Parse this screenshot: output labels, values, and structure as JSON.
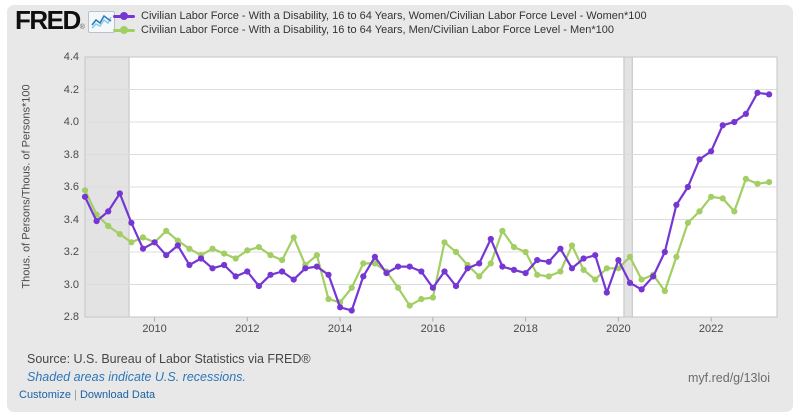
{
  "header": {
    "logo_text": "FRED",
    "logo_mark": "®",
    "logo_icon": "sparkline-chart-icon"
  },
  "footer": {
    "source": "Source: U.S. Bureau of Labor Statistics via FRED®",
    "recession_note": "Shaded areas indicate U.S. recessions.",
    "customize_label": "Customize",
    "separator": "|",
    "download_label": "Download Data",
    "short_url": "myf.red/g/13loi"
  },
  "chart_data": {
    "type": "line",
    "title": "",
    "xlabel": "",
    "ylabel": "Thous. of Persons/Thous. of Persons*100",
    "xlim": [
      2008.5,
      2023.42
    ],
    "ylim": [
      2.8,
      4.4
    ],
    "grid": true,
    "legend_position": "top",
    "x_tick_labels": [
      "2010",
      "2012",
      "2014",
      "2016",
      "2018",
      "2020",
      "2022"
    ],
    "y_tick_labels": [
      "4.4",
      "4.2",
      "4.0",
      "3.8",
      "3.6",
      "3.4",
      "3.2",
      "3.0",
      "2.8"
    ],
    "recessions": [
      {
        "start": 2008.5,
        "end": 2009.45
      },
      {
        "start": 2020.12,
        "end": 2020.3
      }
    ],
    "recession_fill": "#e3e3e3",
    "recession_edge": "#c2c2c2",
    "plot_bg": "#ffffff",
    "grid_color": "#dcdcdc",
    "border_color": "#c6c6c6",
    "x": [
      2008.5,
      2008.75,
      2009,
      2009.25,
      2009.5,
      2009.75,
      2010,
      2010.25,
      2010.5,
      2010.75,
      2011,
      2011.25,
      2011.5,
      2011.75,
      2012,
      2012.25,
      2012.5,
      2012.75,
      2013,
      2013.25,
      2013.5,
      2013.75,
      2014,
      2014.25,
      2014.5,
      2014.75,
      2015,
      2015.25,
      2015.5,
      2015.75,
      2016,
      2016.25,
      2016.5,
      2016.75,
      2017,
      2017.25,
      2017.5,
      2017.75,
      2018,
      2018.25,
      2018.5,
      2018.75,
      2019,
      2019.25,
      2019.5,
      2019.75,
      2020,
      2020.25,
      2020.5,
      2020.75,
      2021,
      2021.25,
      2021.5,
      2021.75,
      2022,
      2022.25,
      2022.5,
      2022.75,
      2023,
      2023.25
    ],
    "series": [
      {
        "name": "Civilian Labor Force - With a Disability, 16 to 64 Years, Women/Civilian Labor Force Level - Women*100",
        "color": "#7536d3",
        "values": [
          3.54,
          3.39,
          3.45,
          3.56,
          3.38,
          3.22,
          3.26,
          3.18,
          3.24,
          3.12,
          3.16,
          3.1,
          3.12,
          3.05,
          3.08,
          2.99,
          3.06,
          3.08,
          3.03,
          3.1,
          3.11,
          3.06,
          2.86,
          2.84,
          3.05,
          3.17,
          3.07,
          3.11,
          3.11,
          3.08,
          2.98,
          3.08,
          2.99,
          3.1,
          3.13,
          3.28,
          3.11,
          3.09,
          3.07,
          3.15,
          3.14,
          3.22,
          3.1,
          3.16,
          3.18,
          2.95,
          3.15,
          3.01,
          2.97,
          3.05,
          3.2,
          3.49,
          3.6,
          3.77,
          3.82,
          3.98,
          4.0,
          4.05,
          4.18,
          4.17
        ]
      },
      {
        "name": "Civilian Labor Force - With a Disability, 16 to 64 Years, Men/Civilian Labor Force Level - Men*100",
        "color": "#a2ce63",
        "values": [
          3.58,
          3.43,
          3.36,
          3.31,
          3.26,
          3.29,
          3.26,
          3.33,
          3.27,
          3.22,
          3.18,
          3.22,
          3.19,
          3.16,
          3.21,
          3.23,
          3.18,
          3.15,
          3.29,
          3.12,
          3.18,
          2.91,
          2.89,
          2.98,
          3.13,
          3.13,
          3.08,
          2.98,
          2.87,
          2.91,
          2.92,
          3.26,
          3.2,
          3.12,
          3.05,
          3.13,
          3.33,
          3.23,
          3.2,
          3.06,
          3.05,
          3.08,
          3.24,
          3.09,
          3.03,
          3.1,
          3.1,
          3.17,
          3.03,
          3.06,
          2.96,
          3.17,
          3.38,
          3.45,
          3.54,
          3.53,
          3.45,
          3.65,
          3.62,
          3.63
        ]
      }
    ]
  }
}
